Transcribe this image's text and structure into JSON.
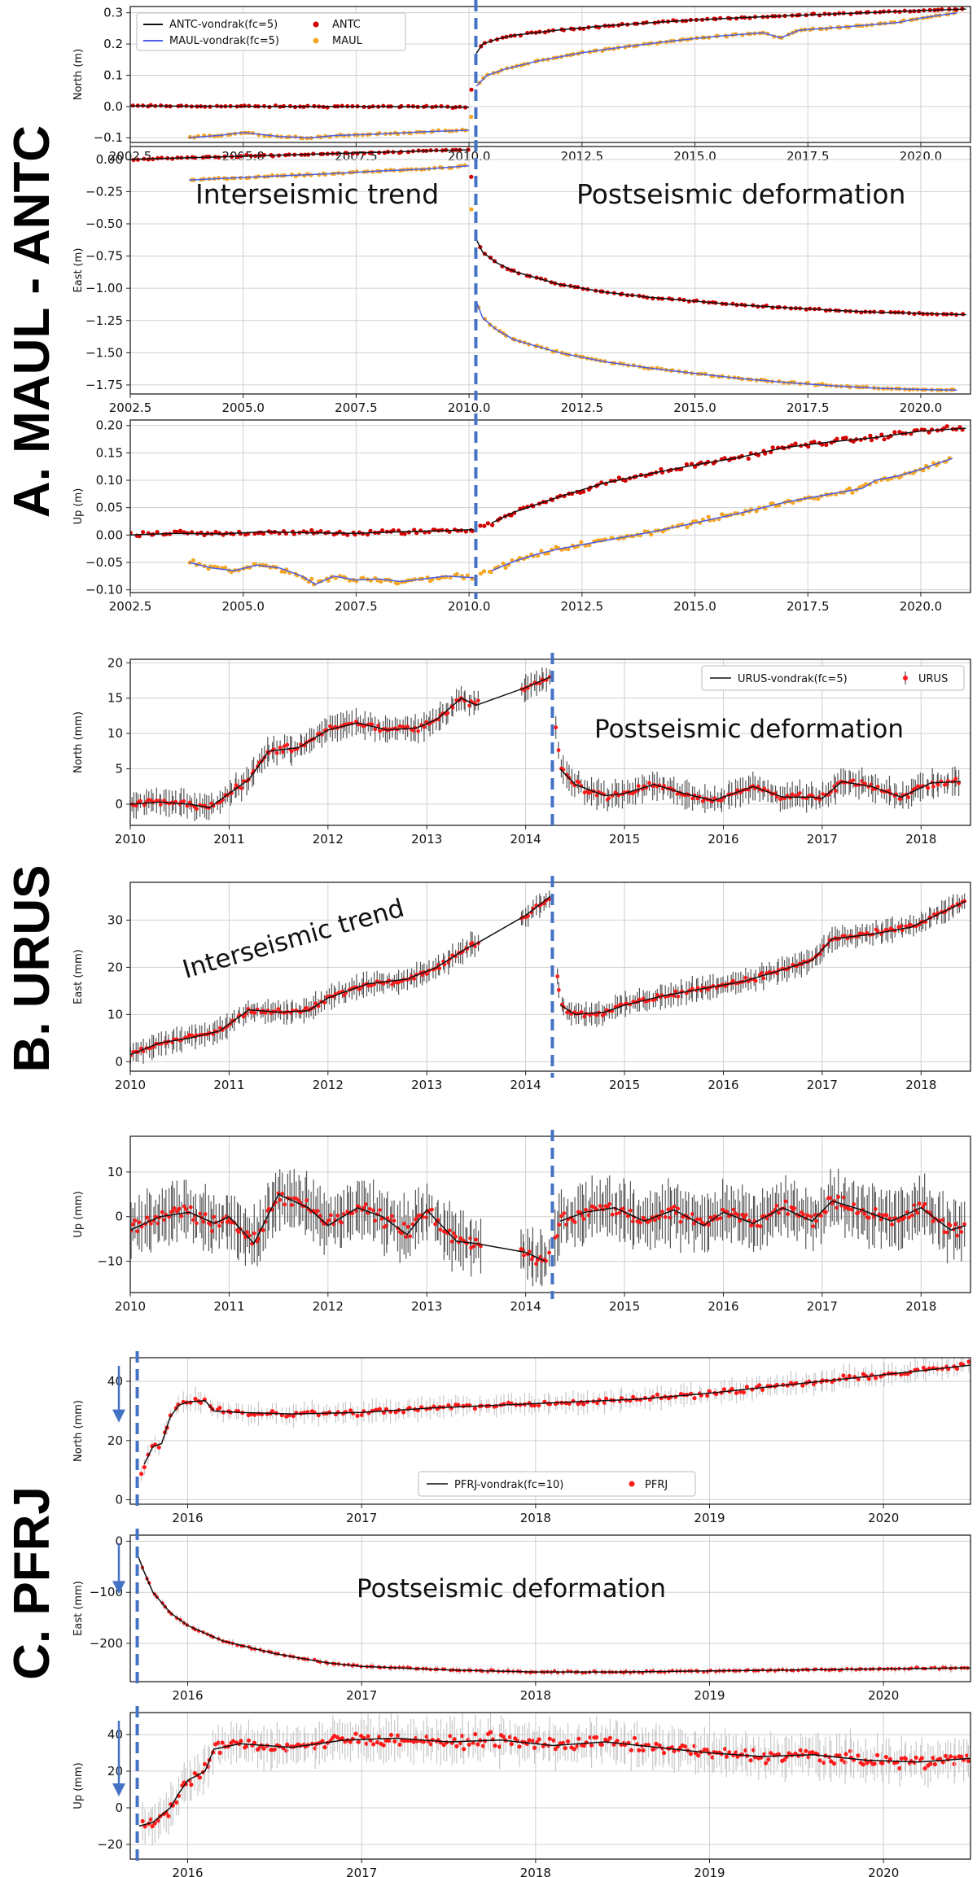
{
  "figure": {
    "sections": [
      {
        "label": "A. MAUL - ANTC"
      },
      {
        "label": "B. URUS"
      },
      {
        "label": "C. PFRJ"
      }
    ],
    "colors": {
      "antc": "#d40000",
      "maul": "#f5a623",
      "maul_fit": "#4a5ee8",
      "fit": "#111111",
      "urus": "#ff1a1a",
      "urus_err": "#555555",
      "pfrj": "#ff1a1a",
      "pfrj_err": "#c8c8c8",
      "event_line": "#4472c4",
      "grid": "#d0d0d0"
    }
  },
  "chart_data": [
    {
      "type": "scatter",
      "id": "maul-north",
      "ylabel": "North (m)",
      "xlim": [
        2002.5,
        2021.1
      ],
      "ylim": [
        -0.115,
        0.32
      ],
      "xticks": [
        2002.5,
        2005.0,
        2007.5,
        2010.0,
        2012.5,
        2015.0,
        2017.5,
        2020.0
      ],
      "xtick_labels": [
        "2002.5",
        "2005.0",
        "2007.5",
        "2010.0",
        "2012.5",
        "2015.0",
        "2017.5",
        "2020.0"
      ],
      "yticks": [
        -0.1,
        0.0,
        0.1,
        0.2,
        0.3
      ],
      "ytick_labels": [
        "−0.1",
        "0.0",
        "0.1",
        "0.2",
        "0.3"
      ],
      "event": 2010.15,
      "legend": [
        "ANTC-vondrak(fc=5)",
        "MAUL-vondrak(fc=5)",
        "ANTC",
        "MAUL"
      ],
      "series": [
        {
          "name": "ANTC",
          "x": [
            2002.5,
            2004.0,
            2006.0,
            2008.0,
            2010.0,
            2010.16,
            2010.3,
            2010.6,
            2011.0,
            2012.0,
            2013.0,
            2014.0,
            2015.0,
            2016.0,
            2017.0,
            2018.0,
            2019.0,
            2020.0,
            2021.0
          ],
          "y": [
            0.002,
            0.001,
            0.0,
            0.0,
            -0.002,
            0.17,
            0.2,
            0.215,
            0.228,
            0.245,
            0.258,
            0.268,
            0.277,
            0.284,
            0.29,
            0.296,
            0.301,
            0.307,
            0.312
          ]
        },
        {
          "name": "MAUL",
          "x": [
            2003.8,
            2004.5,
            2005.0,
            2005.8,
            2006.5,
            2007.0,
            2008.0,
            2009.0,
            2010.0,
            2010.16,
            2010.4,
            2010.8,
            2011.5,
            2012.5,
            2013.5,
            2014.5,
            2015.5,
            2016.5,
            2016.9,
            2017.3,
            2018.5,
            2019.5,
            2020.0,
            2020.8
          ],
          "y": [
            -0.1,
            -0.092,
            -0.083,
            -0.096,
            -0.1,
            -0.093,
            -0.088,
            -0.081,
            -0.076,
            0.065,
            0.1,
            0.12,
            0.145,
            0.172,
            0.192,
            0.21,
            0.225,
            0.236,
            0.22,
            0.244,
            0.257,
            0.269,
            0.283,
            0.3
          ]
        }
      ]
    },
    {
      "type": "scatter",
      "id": "maul-east",
      "ylabel": "East (m)",
      "xlim": [
        2002.5,
        2021.1
      ],
      "ylim": [
        -1.82,
        0.1
      ],
      "xticks": [
        2002.5,
        2005.0,
        2007.5,
        2010.0,
        2012.5,
        2015.0,
        2017.5,
        2020.0
      ],
      "xtick_labels": [
        "2002.5",
        "2005.0",
        "2007.5",
        "2010.0",
        "2012.5",
        "2015.0",
        "2017.5",
        "2020.0"
      ],
      "yticks": [
        0.0,
        -0.25,
        -0.5,
        -0.75,
        -1.0,
        -1.25,
        -1.5,
        -1.75
      ],
      "ytick_labels": [
        "0.00",
        "−0.25",
        "−0.50",
        "−0.75",
        "−1.00",
        "−1.25",
        "−1.50",
        "−1.75"
      ],
      "event": 2010.15,
      "annotations": [
        "Interseismic trend",
        "Postseismic deformation"
      ],
      "series": [
        {
          "name": "ANTC",
          "x": [
            2002.5,
            2004.0,
            2006.0,
            2008.0,
            2010.0,
            2010.16,
            2010.3,
            2010.6,
            2011.0,
            2012.0,
            2013.0,
            2014.0,
            2015.0,
            2016.0,
            2017.0,
            2018.0,
            2019.0,
            2020.0,
            2021.0
          ],
          "y": [
            0.0,
            0.015,
            0.035,
            0.055,
            0.075,
            -0.62,
            -0.72,
            -0.8,
            -0.87,
            -0.97,
            -1.03,
            -1.07,
            -1.1,
            -1.13,
            -1.15,
            -1.17,
            -1.185,
            -1.195,
            -1.205
          ]
        },
        {
          "name": "MAUL",
          "x": [
            2003.8,
            2005.0,
            2006.0,
            2007.0,
            2008.0,
            2009.0,
            2010.0,
            2010.16,
            2010.3,
            2010.6,
            2011.0,
            2012.0,
            2013.0,
            2014.0,
            2015.0,
            2016.0,
            2017.0,
            2018.0,
            2019.0,
            2020.0,
            2020.8
          ],
          "y": [
            -0.16,
            -0.14,
            -0.125,
            -0.11,
            -0.09,
            -0.075,
            -0.05,
            -1.1,
            -1.23,
            -1.32,
            -1.4,
            -1.5,
            -1.57,
            -1.62,
            -1.66,
            -1.7,
            -1.73,
            -1.755,
            -1.775,
            -1.785,
            -1.79
          ]
        }
      ]
    },
    {
      "type": "scatter",
      "id": "maul-up",
      "ylabel": "Up (m)",
      "xlim": [
        2002.5,
        2021.1
      ],
      "ylim": [
        -0.105,
        0.21
      ],
      "xticks": [
        2002.5,
        2005.0,
        2007.5,
        2010.0,
        2012.5,
        2015.0,
        2017.5,
        2020.0
      ],
      "xtick_labels": [
        "2002.5",
        "2005.0",
        "2007.5",
        "2010.0",
        "2012.5",
        "2015.0",
        "2017.5",
        "2020.0"
      ],
      "yticks": [
        -0.1,
        -0.05,
        0.0,
        0.05,
        0.1,
        0.15,
        0.2
      ],
      "ytick_labels": [
        "−0.10",
        "−0.05",
        "0.00",
        "0.05",
        "0.10",
        "0.15",
        "0.20"
      ],
      "event": 2010.15,
      "series": [
        {
          "name": "ANTC",
          "x": [
            2002.5,
            2003.5,
            2004.5,
            2005.5,
            2006.5,
            2007.5,
            2008.5,
            2009.5,
            2010.1,
            2010.5,
            2011.0,
            2012.0,
            2013.0,
            2014.0,
            2015.0,
            2016.0,
            2017.0,
            2018.0,
            2019.0,
            2020.0,
            2021.0
          ],
          "y": [
            0.0,
            0.003,
            0.002,
            0.006,
            0.004,
            0.003,
            0.006,
            0.008,
            0.01,
            0.022,
            0.042,
            0.07,
            0.095,
            0.112,
            0.128,
            0.142,
            0.16,
            0.17,
            0.178,
            0.19,
            0.195
          ]
        },
        {
          "name": "MAUL",
          "x": [
            2003.8,
            2004.3,
            2004.8,
            2005.3,
            2005.8,
            2006.3,
            2006.6,
            2007.0,
            2007.5,
            2008.0,
            2008.5,
            2009.0,
            2009.5,
            2010.1,
            2010.5,
            2011.0,
            2011.5,
            2012.0,
            2013.0,
            2014.0,
            2015.0,
            2016.0,
            2017.0,
            2018.0,
            2018.7,
            2019.0,
            2019.5,
            2020.0,
            2020.7
          ],
          "y": [
            -0.05,
            -0.06,
            -0.065,
            -0.055,
            -0.06,
            -0.075,
            -0.09,
            -0.075,
            -0.082,
            -0.08,
            -0.085,
            -0.08,
            -0.075,
            -0.078,
            -0.065,
            -0.048,
            -0.035,
            -0.025,
            -0.01,
            0.005,
            0.022,
            0.04,
            0.06,
            0.075,
            0.085,
            0.1,
            0.108,
            0.12,
            0.14
          ]
        }
      ]
    },
    {
      "type": "scatter",
      "id": "urus-north",
      "ylabel": "North (mm)",
      "xlim": [
        2010.0,
        2018.5
      ],
      "ylim": [
        -3.0,
        20.5
      ],
      "xticks": [
        2010,
        2011,
        2012,
        2013,
        2014,
        2015,
        2016,
        2017,
        2018
      ],
      "xtick_labels": [
        "2010",
        "2011",
        "2012",
        "2013",
        "2014",
        "2015",
        "2016",
        "2017",
        "2018"
      ],
      "yticks": [
        0,
        5,
        10,
        15,
        20
      ],
      "ytick_labels": [
        "0",
        "5",
        "10",
        "15",
        "20"
      ],
      "event": 2014.27,
      "legend": [
        "URUS-vondrak(fc=5)",
        "URUS"
      ],
      "annotations": [
        "Postseismic deformation"
      ],
      "series": [
        {
          "name": "URUS",
          "x": [
            2010.0,
            2010.3,
            2010.6,
            2010.8,
            2011.0,
            2011.2,
            2011.4,
            2011.7,
            2012.0,
            2012.3,
            2012.6,
            2012.9,
            2013.1,
            2013.35,
            2013.5,
            2014.0,
            2014.25,
            2014.35,
            2014.5,
            2014.8,
            2015.0,
            2015.3,
            2015.6,
            2015.9,
            2016.1,
            2016.3,
            2016.6,
            2016.9,
            2017.0,
            2017.2,
            2017.5,
            2017.8,
            2018.1,
            2018.4
          ],
          "y": [
            0.0,
            0.3,
            0.0,
            -0.5,
            1.5,
            3.5,
            7.5,
            8.0,
            10.5,
            11.5,
            10.5,
            10.8,
            12.0,
            15.0,
            14.0,
            16.5,
            18.0,
            5.0,
            2.8,
            1.2,
            1.5,
            2.8,
            1.5,
            0.5,
            1.5,
            2.5,
            1.0,
            1.0,
            0.8,
            3.2,
            2.5,
            1.0,
            3.0,
            3.2
          ]
        }
      ]
    },
    {
      "type": "scatter",
      "id": "urus-east",
      "ylabel": "East (mm)",
      "xlim": [
        2010.0,
        2018.5
      ],
      "ylim": [
        -2.0,
        38.0
      ],
      "xticks": [
        2010,
        2011,
        2012,
        2013,
        2014,
        2015,
        2016,
        2017,
        2018
      ],
      "xtick_labels": [
        "2010",
        "2011",
        "2012",
        "2013",
        "2014",
        "2015",
        "2016",
        "2017",
        "2018"
      ],
      "yticks": [
        0,
        10,
        20,
        30
      ],
      "ytick_labels": [
        "0",
        "10",
        "20",
        "30"
      ],
      "event": 2014.27,
      "annotations": [
        "Interseismic trend"
      ],
      "series": [
        {
          "name": "URUS",
          "x": [
            2010.0,
            2010.3,
            2010.6,
            2010.9,
            2011.2,
            2011.5,
            2011.8,
            2012.0,
            2012.4,
            2012.8,
            2013.1,
            2013.4,
            2013.5,
            2014.0,
            2014.25,
            2014.35,
            2014.5,
            2014.8,
            2015.0,
            2015.4,
            2015.8,
            2016.2,
            2016.6,
            2016.9,
            2017.1,
            2017.5,
            2017.9,
            2018.2,
            2018.45
          ],
          "y": [
            1.5,
            4.0,
            5.0,
            6.5,
            11.0,
            10.5,
            10.8,
            13.5,
            16.5,
            17.5,
            20.0,
            24.0,
            25.0,
            31.0,
            35.0,
            12.0,
            10.0,
            10.5,
            12.0,
            14.0,
            15.5,
            17.0,
            19.5,
            21.5,
            26.0,
            27.0,
            28.5,
            31.5,
            34.0
          ]
        }
      ]
    },
    {
      "type": "scatter",
      "id": "urus-up",
      "ylabel": "Up (mm)",
      "xlim": [
        2010.0,
        2018.5
      ],
      "ylim": [
        -17.0,
        18.0
      ],
      "xticks": [
        2010,
        2011,
        2012,
        2013,
        2014,
        2015,
        2016,
        2017,
        2018
      ],
      "xtick_labels": [
        "2010",
        "2011",
        "2012",
        "2013",
        "2014",
        "2015",
        "2016",
        "2017",
        "2018"
      ],
      "yticks": [
        -10,
        0,
        10
      ],
      "ytick_labels": [
        "−10",
        "0",
        "10"
      ],
      "event": 2014.27,
      "series": [
        {
          "name": "URUS",
          "x": [
            2010.0,
            2010.3,
            2010.6,
            2010.85,
            2011.0,
            2011.25,
            2011.5,
            2011.8,
            2012.0,
            2012.3,
            2012.55,
            2012.8,
            2013.0,
            2013.3,
            2013.5,
            2014.0,
            2014.2,
            2014.35,
            2014.6,
            2014.9,
            2015.2,
            2015.5,
            2015.8,
            2016.0,
            2016.3,
            2016.6,
            2016.9,
            2017.1,
            2017.4,
            2017.7,
            2018.0,
            2018.3,
            2018.45
          ],
          "y": [
            -3.0,
            0.0,
            1.0,
            -1.5,
            0.0,
            -6.0,
            5.0,
            2.0,
            -2.0,
            2.0,
            0.0,
            -4.0,
            1.5,
            -5.5,
            -6.0,
            -8.0,
            -10.0,
            -1.0,
            1.0,
            2.0,
            -1.0,
            1.5,
            -2.0,
            1.0,
            -1.5,
            2.0,
            -1.0,
            3.5,
            1.5,
            -1.0,
            2.0,
            -3.0,
            -2.0
          ]
        }
      ]
    },
    {
      "type": "scatter",
      "id": "pfrj-north",
      "ylabel": "North (mm)",
      "xlim": [
        2015.67,
        2020.5
      ],
      "ylim": [
        -1.5,
        48.0
      ],
      "xticks": [
        2016,
        2017,
        2018,
        2019,
        2020
      ],
      "xtick_labels": [
        "2016",
        "2017",
        "2018",
        "2019",
        "2020"
      ],
      "yticks": [
        0,
        20,
        40
      ],
      "ytick_labels": [
        "0",
        "20",
        "40"
      ],
      "event": 2015.71,
      "legend": [
        "PFRJ-vondrak(fc=10)",
        "PFRJ"
      ],
      "series": [
        {
          "name": "PFRJ",
          "x": [
            2015.7,
            2015.75,
            2015.8,
            2015.85,
            2015.9,
            2015.95,
            2016.0,
            2016.1,
            2016.15,
            2016.3,
            2016.6,
            2017.0,
            2017.4,
            2017.8,
            2018.2,
            2018.6,
            2019.0,
            2019.4,
            2019.8,
            2020.2,
            2020.5
          ],
          "y": [
            2.0,
            12.0,
            18.0,
            19.0,
            28.0,
            32.0,
            33.0,
            33.5,
            30.0,
            29.5,
            29.0,
            29.5,
            31.0,
            32.0,
            33.0,
            34.0,
            36.0,
            38.5,
            41.0,
            43.5,
            45.5
          ]
        }
      ]
    },
    {
      "type": "scatter",
      "id": "pfrj-east",
      "ylabel": "East (mm)",
      "xlim": [
        2015.67,
        2020.5
      ],
      "ylim": [
        -275.0,
        12.0
      ],
      "xticks": [
        2016,
        2017,
        2018,
        2019,
        2020
      ],
      "xtick_labels": [
        "2016",
        "2017",
        "2018",
        "2019",
        "2020"
      ],
      "yticks": [
        0,
        -100,
        -200
      ],
      "ytick_labels": [
        "0",
        "−100",
        "−200"
      ],
      "event": 2015.71,
      "annotations": [
        "Postseismic deformation"
      ],
      "series": [
        {
          "name": "PFRJ",
          "x": [
            2015.71,
            2015.75,
            2015.8,
            2015.9,
            2016.0,
            2016.2,
            2016.5,
            2016.8,
            2017.0,
            2017.5,
            2018.0,
            2018.5,
            2019.0,
            2019.5,
            2020.0,
            2020.5
          ],
          "y": [
            -25.0,
            -60.0,
            -100.0,
            -140.0,
            -165.0,
            -195.0,
            -220.0,
            -238.0,
            -245.0,
            -252.0,
            -256.0,
            -256.0,
            -254.0,
            -252.0,
            -250.0,
            -248.0
          ]
        }
      ]
    },
    {
      "type": "scatter",
      "id": "pfrj-up",
      "ylabel": "Up (mm)",
      "xlim": [
        2015.67,
        2020.5
      ],
      "ylim": [
        -28.0,
        52.0
      ],
      "xticks": [
        2016,
        2017,
        2018,
        2019,
        2020
      ],
      "xtick_labels": [
        "2016",
        "2017",
        "2018",
        "2019",
        "2020"
      ],
      "yticks": [
        -20,
        0,
        20,
        40
      ],
      "ytick_labels": [
        "−20",
        "0",
        "20",
        "40"
      ],
      "event": 2015.71,
      "series": [
        {
          "name": "PFRJ",
          "x": [
            2015.72,
            2015.8,
            2015.9,
            2015.95,
            2016.0,
            2016.1,
            2016.15,
            2016.3,
            2016.6,
            2016.9,
            2017.2,
            2017.5,
            2017.8,
            2018.1,
            2018.4,
            2018.7,
            2019.0,
            2019.3,
            2019.6,
            2019.9,
            2020.2,
            2020.5
          ],
          "y": [
            -10.0,
            -8.0,
            0.0,
            8.0,
            15.0,
            20.0,
            32.0,
            35.0,
            33.0,
            37.0,
            38.0,
            36.0,
            37.0,
            34.0,
            36.0,
            33.0,
            30.0,
            28.0,
            29.0,
            26.0,
            25.0,
            27.0
          ]
        }
      ]
    }
  ]
}
